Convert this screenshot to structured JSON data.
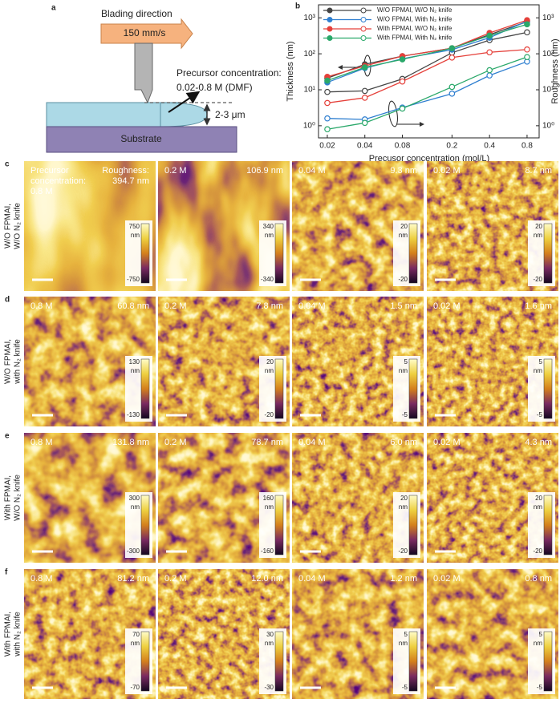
{
  "panel_a": {
    "label": "a",
    "direction_label": "Blading direction",
    "speed": "150 mm/s",
    "precursor_title": "Precursor concentration:",
    "precursor_range": "0.02-0.8 M (DMF)",
    "gap": "2-3 μm",
    "substrate": "Substrate"
  },
  "chart_data": {
    "type": "line",
    "panel_label": "b",
    "x_label": "Precusor concentration (mol/L)",
    "y_label": "Thickness (nm)",
    "y2_label": "Roughness (nm)",
    "x": [
      0.02,
      0.04,
      0.08,
      0.2,
      0.4,
      0.8
    ],
    "xlim": [
      0.017,
      1.0
    ],
    "xticks": [
      0.02,
      0.04,
      0.08,
      0.2,
      0.4,
      0.8
    ],
    "xscale": "log",
    "ylim": [
      0.46,
      2300
    ],
    "yscale": "log",
    "yticks": [
      {
        "value": 1,
        "label": "10⁰"
      },
      {
        "value": 10,
        "label": "10¹"
      },
      {
        "value": 100,
        "label": "10²"
      },
      {
        "value": 1000,
        "label": "10³"
      }
    ],
    "y2lim": [
      0.46,
      2300
    ],
    "y2ticks": [
      {
        "value": 1,
        "label": "10⁰"
      },
      {
        "value": 10,
        "label": "10¹"
      },
      {
        "value": 100,
        "label": "10²"
      },
      {
        "value": 1000,
        "label": "10³"
      }
    ],
    "legend": "upper left",
    "series": [
      {
        "name": "W/O FPMAI, W/O N₂ knife",
        "color": "#454545",
        "values": [
          21,
          51,
          86,
          143,
          340,
          780
        ],
        "roughness": [
          8.7,
          9.3,
          20,
          106.9,
          240,
          394.7
        ]
      },
      {
        "name": "W/O FPMAI, With N₂ knife",
        "color": "#2f7fd0",
        "values": [
          16,
          40,
          73,
          130,
          280,
          810
        ],
        "roughness": [
          1.6,
          1.5,
          3.2,
          7.8,
          25,
          60.8
        ]
      },
      {
        "name": "With FPMAI, W/O N₂ knife",
        "color": "#e5403a",
        "values": [
          23,
          46,
          86,
          143,
          380,
          860
        ],
        "roughness": [
          4.3,
          6.0,
          17,
          78.7,
          110,
          131.8
        ]
      },
      {
        "name": "With FPMAI, With N₂ knife",
        "color": "#2aa86a",
        "values": [
          18,
          42,
          70,
          143,
          320,
          660
        ],
        "roughness": [
          0.8,
          1.2,
          3.0,
          12.0,
          35,
          81.2
        ]
      }
    ]
  },
  "afm": {
    "rows": [
      {
        "label": "c",
        "condition": [
          "W/O FPMAI,",
          "W/O N₂ knife"
        ],
        "cells": [
          {
            "concentration": [
              "Precursor",
              "concentration:",
              "0.8 M"
            ],
            "roughness": [
              "Roughness:",
              "394.7 nm"
            ],
            "scale_max": "750",
            "unit": "nm",
            "scale_min": "-750"
          },
          {
            "concentration": [
              "0.2 M"
            ],
            "roughness": [
              "106.9 nm"
            ],
            "scale_max": "340",
            "unit": "nm",
            "scale_min": "-340"
          },
          {
            "concentration": [
              "0.04 M"
            ],
            "roughness": [
              "9.3 nm"
            ],
            "scale_max": "20",
            "unit": "nm",
            "scale_min": "-20"
          },
          {
            "concentration": [
              "0.02 M"
            ],
            "roughness": [
              "8.7 nm"
            ],
            "scale_max": "20",
            "unit": "nm",
            "scale_min": "-20"
          }
        ]
      },
      {
        "label": "d",
        "condition": [
          "W/O FPMAI,",
          "with N₂ knife"
        ],
        "cells": [
          {
            "concentration": [
              "0.8 M"
            ],
            "roughness": [
              "60.8 nm"
            ],
            "scale_max": "130",
            "unit": "nm",
            "scale_min": "-130"
          },
          {
            "concentration": [
              "0.2 M"
            ],
            "roughness": [
              "7.8 nm"
            ],
            "scale_max": "20",
            "unit": "nm",
            "scale_min": "-20"
          },
          {
            "concentration": [
              "0.04 M"
            ],
            "roughness": [
              "1.5 nm"
            ],
            "scale_max": "5",
            "unit": "nm",
            "scale_min": "-5"
          },
          {
            "concentration": [
              "0.02 M"
            ],
            "roughness": [
              "1.6 nm"
            ],
            "scale_max": "5",
            "unit": "nm",
            "scale_min": "-5"
          }
        ]
      },
      {
        "label": "e",
        "condition": [
          "With FPMAI,",
          "W/O N₂ knife"
        ],
        "cells": [
          {
            "concentration": [
              "0.8 M"
            ],
            "roughness": [
              "131.8 nm"
            ],
            "scale_max": "300",
            "unit": "nm",
            "scale_min": "-300"
          },
          {
            "concentration": [
              "0.2 M"
            ],
            "roughness": [
              "78.7 nm"
            ],
            "scale_max": "160",
            "unit": "nm",
            "scale_min": "-160"
          },
          {
            "concentration": [
              "0.04 M"
            ],
            "roughness": [
              "6.0 nm"
            ],
            "scale_max": "20",
            "unit": "nm",
            "scale_min": "-20"
          },
          {
            "concentration": [
              "0.02 M"
            ],
            "roughness": [
              "4.3 nm"
            ],
            "scale_max": "20",
            "unit": "nm",
            "scale_min": "-20"
          }
        ]
      },
      {
        "label": "f",
        "condition": [
          "With FPMAI,",
          "with N₂ knife"
        ],
        "cells": [
          {
            "concentration": [
              "0.8 M"
            ],
            "roughness": [
              "81.2 nm"
            ],
            "scale_max": "70",
            "unit": "nm",
            "scale_min": "-70"
          },
          {
            "concentration": [
              "0.2 M"
            ],
            "roughness": [
              "12.0 nm"
            ],
            "scale_max": "30",
            "unit": "nm",
            "scale_min": "-30"
          },
          {
            "concentration": [
              "0.04 M"
            ],
            "roughness": [
              "1.2 nm"
            ],
            "scale_max": "5",
            "unit": "nm",
            "scale_min": "-5"
          },
          {
            "concentration": [
              "0.02 M"
            ],
            "roughness": [
              "0.8 nm"
            ],
            "scale_max": "5",
            "unit": "nm",
            "scale_min": "-5"
          }
        ]
      }
    ]
  }
}
